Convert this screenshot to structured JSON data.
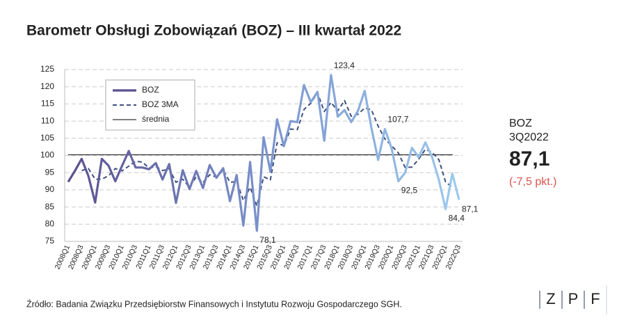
{
  "chart_data": {
    "type": "line",
    "title": "Barometr Obsługi Zobowiązań (BOZ) – III kwartał 2022",
    "categories": [
      "2008Q1",
      null,
      "2008Q3",
      null,
      "2009Q1",
      null,
      "2009Q3",
      null,
      "2010Q1",
      null,
      "2010Q3",
      null,
      "2011Q1",
      null,
      "2011Q3",
      null,
      "2012Q1",
      null,
      "2012Q3",
      null,
      "2013Q1",
      null,
      "2013Q3",
      null,
      "2014Q1",
      null,
      "2014Q3",
      null,
      "2015Q1",
      null,
      "2015Q3",
      null,
      "2016Q1",
      null,
      "2016Q3",
      null,
      "2017Q1",
      null,
      "2017Q3",
      null,
      "2018Q1",
      null,
      "2018Q3",
      null,
      "2019Q1",
      null,
      "2019Q3",
      null,
      "2020Q1",
      null,
      "2020Q3",
      null,
      "2021Q1",
      null,
      "2021Q3",
      null,
      "2022Q1",
      null,
      "2022Q3"
    ],
    "series": [
      {
        "name": "BOZ",
        "color": "#6f7fc0",
        "gradient": [
          "#5b4f8f",
          "#7a93cc",
          "#9dcaee"
        ],
        "values": [
          92.3,
          95.5,
          99,
          94,
          86.3,
          99,
          97,
          92.5,
          97,
          101.3,
          96.5,
          96.5,
          96,
          97.8,
          93,
          97.5,
          86.2,
          95.7,
          90.2,
          95.5,
          90.5,
          97.2,
          93.5,
          96.3,
          86.7,
          94.3,
          79.6,
          98.1,
          78.1,
          105.3,
          95.3,
          110.5,
          102.7,
          110,
          109.7,
          120.5,
          115.5,
          118.5,
          104.3,
          123.4,
          111.3,
          113.2,
          109.7,
          113,
          118.8,
          108,
          98.7,
          107.7,
          102,
          92.5,
          95,
          102.2,
          99.5,
          103.8,
          99.5,
          93,
          84.4,
          94.7,
          87.1
        ],
        "value_labels": [
          null,
          null,
          null,
          null,
          null,
          null,
          null,
          null,
          null,
          null,
          null,
          null,
          null,
          null,
          null,
          null,
          null,
          null,
          null,
          null,
          null,
          null,
          null,
          null,
          null,
          null,
          null,
          null,
          "78,1",
          null,
          null,
          null,
          null,
          null,
          null,
          null,
          null,
          null,
          null,
          "123,4",
          null,
          null,
          null,
          null,
          null,
          null,
          null,
          "107,7",
          null,
          "92,5",
          null,
          null,
          null,
          null,
          null,
          null,
          "84,4",
          null,
          "87,1"
        ]
      },
      {
        "name": "BOZ 3MA",
        "color": "#3e4f80",
        "dashed": true,
        "values": [
          null,
          null,
          95.6,
          96.2,
          93.1,
          93.1,
          94.1,
          96.2,
          95.5,
          96.9,
          98.3,
          98.1,
          96.3,
          96.8,
          95.6,
          96.1,
          92.2,
          93.1,
          90.7,
          93.8,
          92.1,
          94.4,
          93.7,
          95.7,
          92.2,
          92.4,
          86.9,
          90.7,
          85.3,
          93.8,
          92.9,
          103.7,
          102.8,
          107.7,
          107.5,
          113.4,
          115.2,
          118.2,
          112.8,
          115.4,
          113,
          116,
          111.4,
          112,
          113.8,
          113.3,
          108.5,
          104.8,
          102.8,
          100.7,
          96.5,
          96.6,
          98.9,
          101.8,
          100.9,
          98.8,
          92.3,
          90.7,
          null
        ]
      }
    ],
    "reference_line": {
      "name": "średnia",
      "value": 100.2,
      "color": "#333333"
    },
    "ylim": [
      75,
      125
    ],
    "yticks": [
      75,
      80,
      85,
      90,
      95,
      100,
      105,
      110,
      115,
      120,
      125
    ],
    "grid": true
  },
  "side_panel": {
    "label": "BOZ",
    "period": "3Q2022",
    "value": "87,1",
    "change": "(-7,5 pkt.)"
  },
  "source": "Źródło: Badania Związku Przedsiębiorstw Finansowych i Instytutu Rozwoju Gospodarczego SGH.",
  "logo": [
    "Z",
    "P",
    "F"
  ]
}
